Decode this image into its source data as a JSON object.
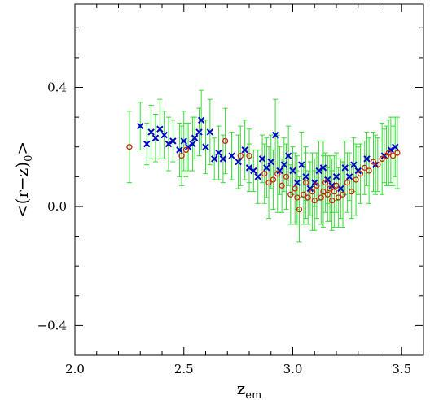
{
  "chart_data": {
    "type": "scatter",
    "xlim": [
      2.0,
      3.6
    ],
    "ylim": [
      -0.5,
      0.68
    ],
    "x_ticks": [
      {
        "value": 2.0,
        "label": "2.0"
      },
      {
        "value": 2.5,
        "label": "2.5"
      },
      {
        "value": 3.0,
        "label": "3.0"
      },
      {
        "value": 3.5,
        "label": "3.5"
      }
    ],
    "y_ticks": [
      {
        "value": -0.4,
        "label": "−0.4"
      },
      {
        "value": 0.0,
        "label": "0.0"
      },
      {
        "value": 0.4,
        "label": "0.4"
      }
    ],
    "xlabel": {
      "base": "z",
      "sub": "em"
    },
    "ylabel": {
      "pre": "<(r−z)",
      "sub": "0",
      "post": ">"
    },
    "grid": false,
    "colors": {
      "errorbar": "#33dd33",
      "cross": "#0000cc",
      "circle": "#cc2200"
    },
    "series": [
      {
        "marker": "cross",
        "points": [
          [
            2.3,
            0.27,
            0.08
          ],
          [
            2.33,
            0.21,
            0.07
          ],
          [
            2.35,
            0.25,
            0.09
          ],
          [
            2.37,
            0.23,
            0.08
          ],
          [
            2.39,
            0.26,
            0.1
          ],
          [
            2.41,
            0.24,
            0.08
          ],
          [
            2.43,
            0.21,
            0.09
          ],
          [
            2.45,
            0.22,
            0.07
          ],
          [
            2.48,
            0.19,
            0.09
          ],
          [
            2.5,
            0.22,
            0.1
          ],
          [
            2.52,
            0.2,
            0.08
          ],
          [
            2.54,
            0.21,
            0.09
          ],
          [
            2.55,
            0.23,
            0.07
          ],
          [
            2.57,
            0.25,
            0.08
          ],
          [
            2.58,
            0.29,
            0.1
          ],
          [
            2.6,
            0.2,
            0.09
          ],
          [
            2.62,
            0.25,
            0.11
          ],
          [
            2.64,
            0.16,
            0.07
          ],
          [
            2.66,
            0.18,
            0.09
          ],
          [
            2.68,
            0.16,
            0.08
          ],
          [
            2.72,
            0.17,
            0.08
          ],
          [
            2.75,
            0.15,
            0.09
          ],
          [
            2.78,
            0.19,
            0.1
          ],
          [
            2.8,
            0.13,
            0.08
          ],
          [
            2.82,
            0.12,
            0.07
          ],
          [
            2.84,
            0.1,
            0.09
          ],
          [
            2.86,
            0.16,
            0.08
          ],
          [
            2.88,
            0.13,
            0.1
          ],
          [
            2.9,
            0.15,
            0.09
          ],
          [
            2.92,
            0.24,
            0.12
          ],
          [
            2.94,
            0.12,
            0.08
          ],
          [
            2.96,
            0.14,
            0.09
          ],
          [
            2.98,
            0.17,
            0.1
          ],
          [
            3.0,
            0.12,
            0.08
          ],
          [
            3.02,
            0.08,
            0.09
          ],
          [
            3.04,
            0.14,
            0.11
          ],
          [
            3.06,
            0.1,
            0.08
          ],
          [
            3.08,
            0.06,
            0.09
          ],
          [
            3.1,
            0.08,
            0.08
          ],
          [
            3.12,
            0.12,
            0.1
          ],
          [
            3.14,
            0.13,
            0.09
          ],
          [
            3.16,
            0.09,
            0.08
          ],
          [
            3.18,
            0.07,
            0.09
          ],
          [
            3.2,
            0.1,
            0.08
          ],
          [
            3.22,
            0.06,
            0.1
          ],
          [
            3.24,
            0.13,
            0.09
          ],
          [
            3.26,
            0.1,
            0.08
          ],
          [
            3.28,
            0.14,
            0.09
          ],
          [
            3.3,
            0.12,
            0.08
          ],
          [
            3.34,
            0.16,
            0.09
          ],
          [
            3.38,
            0.14,
            0.1
          ],
          [
            3.42,
            0.17,
            0.09
          ],
          [
            3.45,
            0.19,
            0.11
          ],
          [
            3.47,
            0.2,
            0.1
          ]
        ]
      },
      {
        "marker": "circle",
        "points": [
          [
            2.25,
            0.2,
            0.12
          ],
          [
            2.49,
            0.17,
            0.1
          ],
          [
            2.51,
            0.19,
            0.09
          ],
          [
            2.69,
            0.22,
            0.11
          ],
          [
            2.76,
            0.17,
            0.1
          ],
          [
            2.8,
            0.17,
            0.09
          ],
          [
            2.87,
            0.11,
            0.1
          ],
          [
            2.89,
            0.08,
            0.12
          ],
          [
            2.91,
            0.09,
            0.1
          ],
          [
            2.93,
            0.11,
            0.13
          ],
          [
            2.95,
            0.07,
            0.09
          ],
          [
            2.97,
            0.1,
            0.11
          ],
          [
            2.99,
            0.04,
            0.1
          ],
          [
            3.01,
            0.06,
            0.12
          ],
          [
            3.02,
            0.03,
            0.09
          ],
          [
            3.03,
            -0.01,
            0.11
          ],
          [
            3.05,
            0.04,
            0.1
          ],
          [
            3.06,
            0.08,
            0.12
          ],
          [
            3.07,
            0.03,
            0.09
          ],
          [
            3.09,
            0.05,
            0.13
          ],
          [
            3.1,
            0.02,
            0.1
          ],
          [
            3.11,
            0.07,
            0.11
          ],
          [
            3.13,
            0.03,
            0.09
          ],
          [
            3.14,
            0.05,
            0.12
          ],
          [
            3.15,
            0.08,
            0.1
          ],
          [
            3.16,
            0.04,
            0.09
          ],
          [
            3.17,
            0.06,
            0.11
          ],
          [
            3.18,
            0.02,
            0.1
          ],
          [
            3.19,
            0.05,
            0.12
          ],
          [
            3.2,
            0.07,
            0.09
          ],
          [
            3.21,
            0.03,
            0.1
          ],
          [
            3.23,
            0.04,
            0.11
          ],
          [
            3.25,
            0.08,
            0.1
          ],
          [
            3.27,
            0.05,
            0.09
          ],
          [
            3.29,
            0.09,
            0.12
          ],
          [
            3.31,
            0.11,
            0.1
          ],
          [
            3.33,
            0.13,
            0.09
          ],
          [
            3.35,
            0.12,
            0.11
          ],
          [
            3.37,
            0.15,
            0.1
          ],
          [
            3.39,
            0.14,
            0.09
          ],
          [
            3.41,
            0.16,
            0.12
          ],
          [
            3.43,
            0.17,
            0.1
          ],
          [
            3.44,
            0.18,
            0.11
          ],
          [
            3.46,
            0.17,
            0.1
          ],
          [
            3.48,
            0.18,
            0.12
          ]
        ]
      }
    ]
  }
}
